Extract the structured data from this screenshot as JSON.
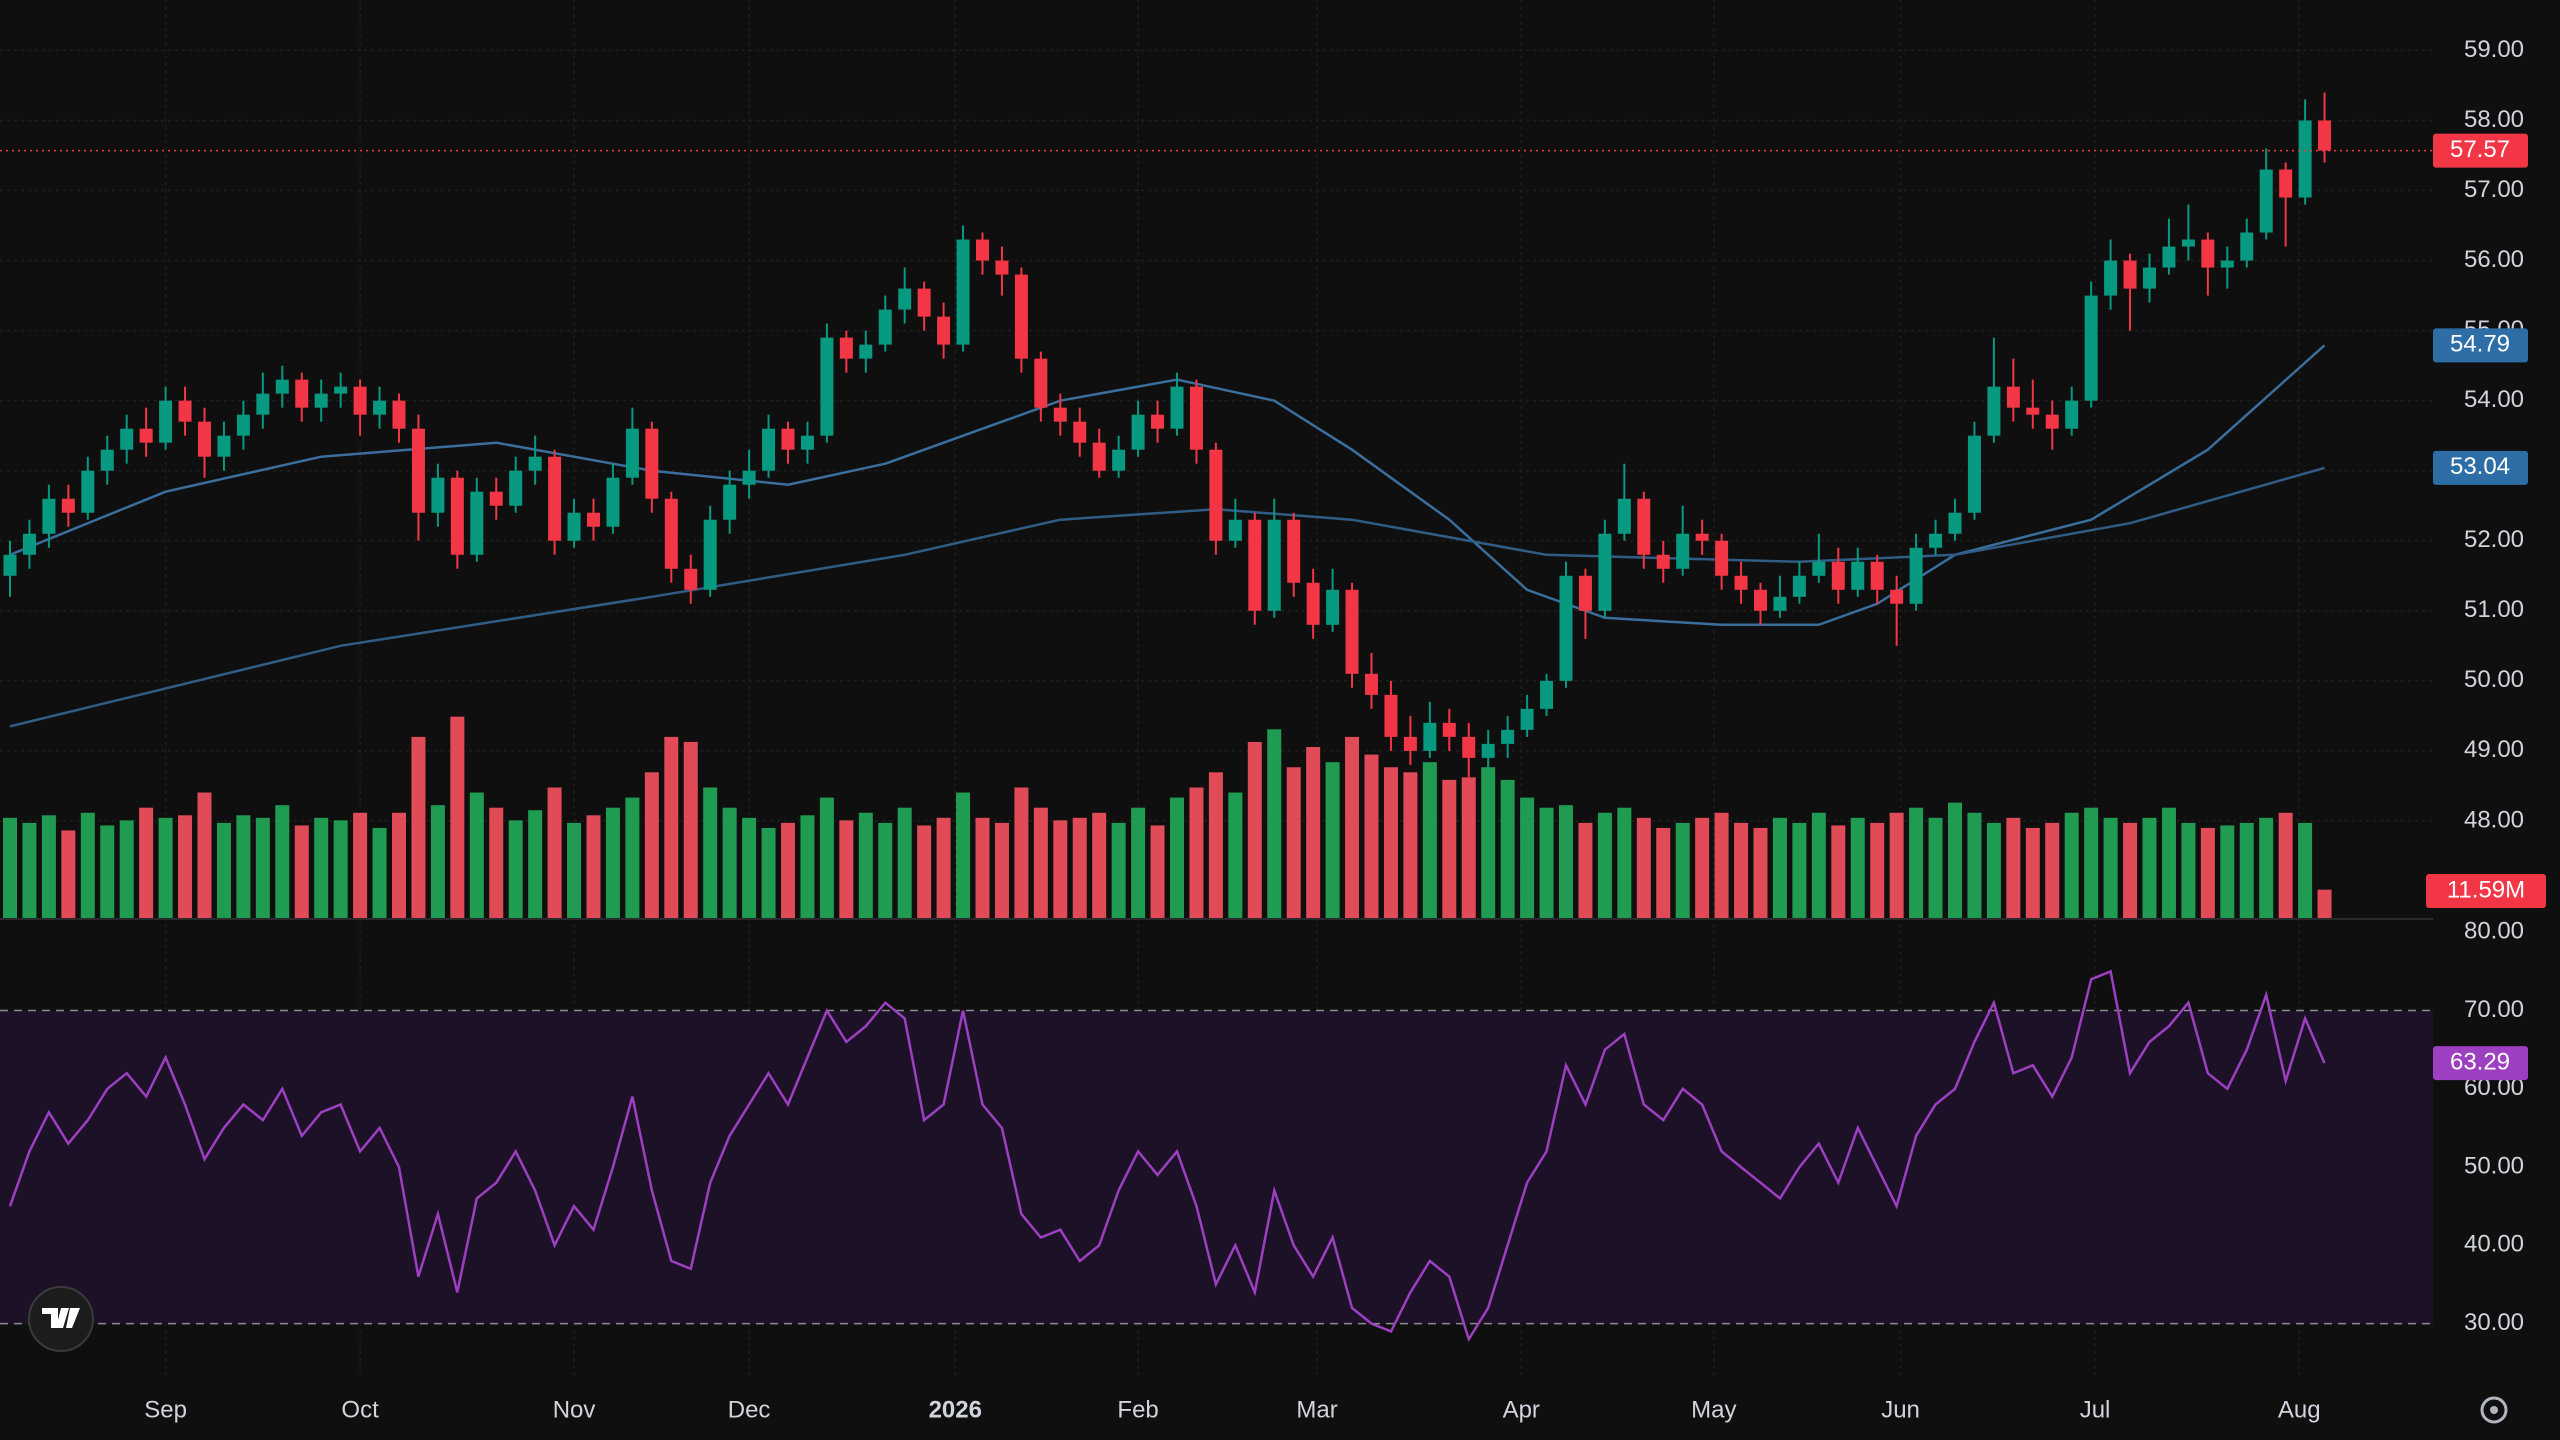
{
  "chart_data": [
    {
      "type": "candlestick",
      "up_color": "#089981",
      "down_color": "#f23645",
      "ohlc": [
        [
          51.5,
          52.0,
          51.2,
          51.8
        ],
        [
          51.8,
          52.3,
          51.6,
          52.1
        ],
        [
          52.1,
          52.8,
          51.9,
          52.6
        ],
        [
          52.6,
          52.8,
          52.2,
          52.4
        ],
        [
          52.4,
          53.2,
          52.3,
          53.0
        ],
        [
          53.0,
          53.5,
          52.8,
          53.3
        ],
        [
          53.3,
          53.8,
          53.1,
          53.6
        ],
        [
          53.6,
          53.9,
          53.2,
          53.4
        ],
        [
          53.4,
          54.2,
          53.3,
          54.0
        ],
        [
          54.0,
          54.2,
          53.5,
          53.7
        ],
        [
          53.7,
          53.9,
          52.9,
          53.2
        ],
        [
          53.2,
          53.7,
          53.0,
          53.5
        ],
        [
          53.5,
          54.0,
          53.3,
          53.8
        ],
        [
          53.8,
          54.4,
          53.6,
          54.1
        ],
        [
          54.1,
          54.5,
          53.9,
          54.3
        ],
        [
          54.3,
          54.4,
          53.7,
          53.9
        ],
        [
          53.9,
          54.3,
          53.7,
          54.1
        ],
        [
          54.1,
          54.4,
          53.9,
          54.2
        ],
        [
          54.2,
          54.3,
          53.5,
          53.8
        ],
        [
          53.8,
          54.2,
          53.6,
          54.0
        ],
        [
          54.0,
          54.1,
          53.4,
          53.6
        ],
        [
          53.6,
          53.8,
          52.0,
          52.4
        ],
        [
          52.4,
          53.1,
          52.2,
          52.9
        ],
        [
          52.9,
          53.0,
          51.6,
          51.8
        ],
        [
          51.8,
          52.9,
          51.7,
          52.7
        ],
        [
          52.7,
          52.9,
          52.3,
          52.5
        ],
        [
          52.5,
          53.2,
          52.4,
          53.0
        ],
        [
          53.0,
          53.5,
          52.8,
          53.2
        ],
        [
          53.2,
          53.3,
          51.8,
          52.0
        ],
        [
          52.0,
          52.6,
          51.9,
          52.4
        ],
        [
          52.4,
          52.6,
          52.0,
          52.2
        ],
        [
          52.2,
          53.1,
          52.1,
          52.9
        ],
        [
          52.9,
          53.9,
          52.8,
          53.6
        ],
        [
          53.6,
          53.7,
          52.4,
          52.6
        ],
        [
          52.6,
          52.7,
          51.4,
          51.6
        ],
        [
          51.6,
          51.8,
          51.1,
          51.3
        ],
        [
          51.3,
          52.5,
          51.2,
          52.3
        ],
        [
          52.3,
          53.0,
          52.1,
          52.8
        ],
        [
          52.8,
          53.3,
          52.6,
          53.0
        ],
        [
          53.0,
          53.8,
          52.9,
          53.6
        ],
        [
          53.6,
          53.7,
          53.1,
          53.3
        ],
        [
          53.3,
          53.7,
          53.1,
          53.5
        ],
        [
          53.5,
          55.1,
          53.4,
          54.9
        ],
        [
          54.9,
          55.0,
          54.4,
          54.6
        ],
        [
          54.6,
          55.0,
          54.4,
          54.8
        ],
        [
          54.8,
          55.5,
          54.7,
          55.3
        ],
        [
          55.3,
          55.9,
          55.1,
          55.6
        ],
        [
          55.6,
          55.7,
          55.0,
          55.2
        ],
        [
          55.2,
          55.4,
          54.6,
          54.8
        ],
        [
          54.8,
          56.5,
          54.7,
          56.3
        ],
        [
          56.3,
          56.4,
          55.8,
          56.0
        ],
        [
          56.0,
          56.2,
          55.5,
          55.8
        ],
        [
          55.8,
          55.9,
          54.4,
          54.6
        ],
        [
          54.6,
          54.7,
          53.7,
          53.9
        ],
        [
          53.9,
          54.1,
          53.5,
          53.7
        ],
        [
          53.7,
          53.9,
          53.2,
          53.4
        ],
        [
          53.4,
          53.6,
          52.9,
          53.0
        ],
        [
          53.0,
          53.5,
          52.9,
          53.3
        ],
        [
          53.3,
          54.0,
          53.2,
          53.8
        ],
        [
          53.8,
          54.0,
          53.4,
          53.6
        ],
        [
          53.6,
          54.4,
          53.5,
          54.2
        ],
        [
          54.2,
          54.3,
          53.1,
          53.3
        ],
        [
          53.3,
          53.4,
          51.8,
          52.0
        ],
        [
          52.0,
          52.6,
          51.9,
          52.3
        ],
        [
          52.3,
          52.4,
          50.8,
          51.0
        ],
        [
          51.0,
          52.6,
          50.9,
          52.3
        ],
        [
          52.3,
          52.4,
          51.2,
          51.4
        ],
        [
          51.4,
          51.6,
          50.6,
          50.8
        ],
        [
          50.8,
          51.6,
          50.7,
          51.3
        ],
        [
          51.3,
          51.4,
          49.9,
          50.1
        ],
        [
          50.1,
          50.4,
          49.6,
          49.8
        ],
        [
          49.8,
          50.0,
          49.0,
          49.2
        ],
        [
          49.2,
          49.5,
          48.8,
          49.0
        ],
        [
          49.0,
          49.7,
          48.9,
          49.4
        ],
        [
          49.4,
          49.6,
          49.0,
          49.2
        ],
        [
          49.2,
          49.4,
          48.6,
          48.9
        ],
        [
          48.9,
          49.3,
          48.7,
          49.1
        ],
        [
          49.1,
          49.5,
          48.9,
          49.3
        ],
        [
          49.3,
          49.8,
          49.2,
          49.6
        ],
        [
          49.6,
          50.1,
          49.5,
          50.0
        ],
        [
          50.0,
          51.7,
          49.9,
          51.5
        ],
        [
          51.5,
          51.6,
          50.6,
          51.0
        ],
        [
          51.0,
          52.3,
          50.9,
          52.1
        ],
        [
          52.1,
          53.1,
          52.0,
          52.6
        ],
        [
          52.6,
          52.7,
          51.6,
          51.8
        ],
        [
          51.8,
          52.0,
          51.4,
          51.6
        ],
        [
          51.6,
          52.5,
          51.5,
          52.1
        ],
        [
          52.1,
          52.3,
          51.8,
          52.0
        ],
        [
          52.0,
          52.1,
          51.3,
          51.5
        ],
        [
          51.5,
          51.7,
          51.1,
          51.3
        ],
        [
          51.3,
          51.4,
          50.8,
          51.0
        ],
        [
          51.0,
          51.5,
          50.9,
          51.2
        ],
        [
          51.2,
          51.7,
          51.1,
          51.5
        ],
        [
          51.5,
          52.1,
          51.4,
          51.7
        ],
        [
          51.7,
          51.9,
          51.1,
          51.3
        ],
        [
          51.3,
          51.9,
          51.2,
          51.7
        ],
        [
          51.7,
          51.8,
          51.1,
          51.3
        ],
        [
          51.3,
          51.5,
          50.5,
          51.1
        ],
        [
          51.1,
          52.1,
          51.0,
          51.9
        ],
        [
          51.9,
          52.3,
          51.8,
          52.1
        ],
        [
          52.1,
          52.6,
          52.0,
          52.4
        ],
        [
          52.4,
          53.7,
          52.3,
          53.5
        ],
        [
          53.5,
          54.9,
          53.4,
          54.2
        ],
        [
          54.2,
          54.6,
          53.7,
          53.9
        ],
        [
          53.9,
          54.3,
          53.6,
          53.8
        ],
        [
          53.8,
          54.0,
          53.3,
          53.6
        ],
        [
          53.6,
          54.2,
          53.5,
          54.0
        ],
        [
          54.0,
          55.7,
          53.9,
          55.5
        ],
        [
          55.5,
          56.3,
          55.3,
          56.0
        ],
        [
          56.0,
          56.1,
          55.0,
          55.6
        ],
        [
          55.6,
          56.1,
          55.4,
          55.9
        ],
        [
          55.9,
          56.6,
          55.8,
          56.2
        ],
        [
          56.2,
          56.8,
          56.0,
          56.3
        ],
        [
          56.3,
          56.4,
          55.5,
          55.9
        ],
        [
          55.9,
          56.2,
          55.6,
          56.0
        ],
        [
          56.0,
          56.6,
          55.9,
          56.4
        ],
        [
          56.4,
          57.6,
          56.3,
          57.3
        ],
        [
          57.3,
          57.4,
          56.2,
          56.9
        ],
        [
          56.9,
          58.3,
          56.8,
          58.0
        ],
        [
          58.0,
          58.4,
          57.4,
          57.57
        ]
      ],
      "series": [
        {
          "color": "#3a6e9c",
          "x": [
            0,
            8,
            16,
            25,
            33,
            40,
            45,
            50,
            54,
            60,
            65,
            69,
            74,
            78,
            82,
            88,
            93,
            96,
            100,
            107,
            113,
            119
          ],
          "values": [
            51.8,
            52.7,
            53.2,
            53.4,
            53.0,
            52.8,
            53.1,
            53.6,
            54.0,
            54.3,
            54.0,
            53.3,
            52.3,
            51.3,
            50.9,
            50.8,
            50.8,
            51.1,
            51.8,
            52.3,
            53.3,
            54.79
          ]
        },
        {
          "color": "#2f5d85",
          "x": [
            0,
            17,
            33,
            46,
            54,
            62,
            69,
            79,
            92,
            100,
            109,
            119
          ],
          "values": [
            49.35,
            50.5,
            51.2,
            51.8,
            52.3,
            52.45,
            52.3,
            51.8,
            51.7,
            51.8,
            52.25,
            53.04
          ]
        }
      ],
      "volume": {
        "values": [
          40,
          38,
          41,
          35,
          42,
          37,
          39,
          44,
          40,
          41,
          50,
          38,
          41,
          40,
          45,
          37,
          40,
          39,
          42,
          36,
          42,
          72,
          45,
          80,
          50,
          44,
          39,
          43,
          52,
          38,
          41,
          44,
          48,
          58,
          72,
          70,
          52,
          44,
          40,
          36,
          38,
          41,
          48,
          39,
          42,
          38,
          44,
          37,
          40,
          50,
          40,
          38,
          52,
          44,
          39,
          40,
          42,
          38,
          44,
          37,
          48,
          52,
          58,
          50,
          70,
          75,
          60,
          68,
          62,
          72,
          65,
          60,
          58,
          62,
          55,
          56,
          60,
          55,
          48,
          44,
          45,
          38,
          42,
          44,
          40,
          36,
          38,
          40,
          42,
          38,
          36,
          40,
          38,
          42,
          37,
          40,
          38,
          42,
          44,
          40,
          46,
          42,
          38,
          40,
          36,
          38,
          42,
          44,
          40,
          38,
          40,
          44,
          38,
          36,
          37,
          38,
          40,
          42,
          38,
          11.59
        ],
        "last_value_label": "11.59M",
        "ylim": [
          0,
          85
        ]
      },
      "ylim": [
        46.6,
        59.72
      ],
      "yticks": [
        {
          "value": 48,
          "label": "48.00"
        },
        {
          "value": 49,
          "label": "49.00"
        },
        {
          "value": 50,
          "label": "50.00"
        },
        {
          "value": 51,
          "label": "51.00"
        },
        {
          "value": 52,
          "label": "52.00"
        },
        {
          "value": 53,
          "label": "53.00"
        },
        {
          "value": 54,
          "label": "54.00"
        },
        {
          "value": 55,
          "label": "55.00"
        },
        {
          "value": 56,
          "label": "56.00"
        },
        {
          "value": 57,
          "label": "57.00"
        },
        {
          "value": 58,
          "label": "58.00"
        },
        {
          "value": 59,
          "label": "59.00"
        }
      ],
      "xlim": [
        0,
        119
      ],
      "xticks": [
        {
          "value": 8,
          "label": "Sep"
        },
        {
          "value": 18,
          "label": "Oct"
        },
        {
          "value": 29,
          "label": "Nov"
        },
        {
          "value": 38,
          "label": "Dec"
        },
        {
          "value": 48.6,
          "label": "2026"
        },
        {
          "value": 58,
          "label": "Feb"
        },
        {
          "value": 67.2,
          "label": "Mar"
        },
        {
          "value": 77.7,
          "label": "Apr"
        },
        {
          "value": 87.6,
          "label": "May"
        },
        {
          "value": 97.2,
          "label": "Jun"
        },
        {
          "value": 107.2,
          "label": "Jul"
        },
        {
          "value": 117.7,
          "label": "Aug"
        }
      ],
      "grid": true
    },
    {
      "type": "line",
      "color": "#9c3fc0",
      "values": [
        45,
        52,
        57,
        53,
        56,
        60,
        62,
        59,
        64,
        58,
        51,
        55,
        58,
        56,
        60,
        54,
        57,
        58,
        52,
        55,
        50,
        36,
        44,
        34,
        46,
        48,
        52,
        47,
        40,
        45,
        42,
        50,
        59,
        47,
        38,
        37,
        48,
        54,
        58,
        62,
        58,
        64,
        70,
        66,
        68,
        71,
        69,
        56,
        58,
        70,
        58,
        55,
        44,
        41,
        42,
        38,
        40,
        47,
        52,
        49,
        52,
        45,
        35,
        40,
        34,
        47,
        40,
        36,
        41,
        32,
        30,
        29,
        34,
        38,
        36,
        28,
        32,
        40,
        48,
        52,
        63,
        58,
        65,
        67,
        58,
        56,
        60,
        58,
        52,
        50,
        48,
        46,
        50,
        53,
        48,
        55,
        50,
        45,
        54,
        58,
        60,
        66,
        71,
        62,
        63,
        59,
        64,
        74,
        75,
        62,
        66,
        68,
        71,
        62,
        60,
        65,
        72,
        61,
        69,
        63.29
      ],
      "ylim": [
        23.3,
        81.7
      ],
      "yticks": [
        {
          "value": 30,
          "label": "30.00"
        },
        {
          "value": 40,
          "label": "40.00"
        },
        {
          "value": 50,
          "label": "50.00"
        },
        {
          "value": 60,
          "label": "60.00"
        },
        {
          "value": 70,
          "label": "70.00"
        },
        {
          "value": 80,
          "label": "80.00"
        }
      ],
      "bands": [
        30,
        70
      ]
    }
  ]
}
